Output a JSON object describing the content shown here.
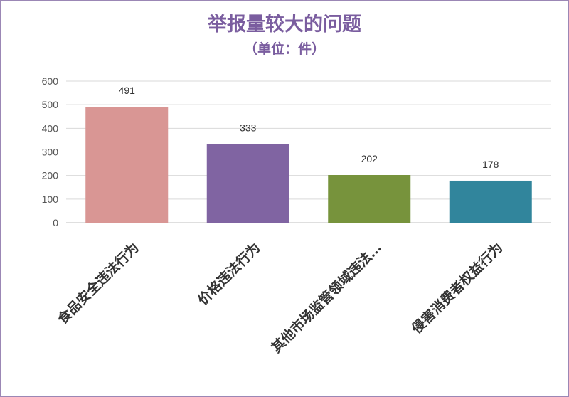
{
  "chart_data": {
    "type": "bar",
    "title": "举报量较大的问题",
    "subtitle": "（单位：件）",
    "categories": [
      "食品安全违法行为",
      "价格违法行为",
      "其他市场监管领域违法…",
      "侵害消费者权益行为"
    ],
    "values": [
      491,
      333,
      202,
      178
    ],
    "colors": [
      "#d99694",
      "#8064a2",
      "#77933c",
      "#31859c"
    ],
    "ylim": [
      0,
      600
    ],
    "yticks": [
      "0",
      "100",
      "200",
      "300",
      "400",
      "500",
      "600"
    ],
    "grid": true,
    "legend": "none"
  }
}
